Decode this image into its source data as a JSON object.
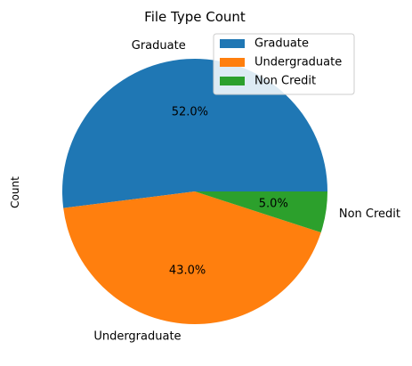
{
  "chart_data": {
    "type": "pie",
    "title": "File Type Count",
    "ylabel": "Count",
    "categories": [
      "Graduate",
      "Undergraduate",
      "Non Credit"
    ],
    "values": [
      52.0,
      43.0,
      5.0
    ],
    "percent_labels": [
      "52.0%",
      "43.0%",
      "5.0%"
    ],
    "colors": [
      "#1f77b4",
      "#ff7f0e",
      "#2ca02c"
    ],
    "legend": {
      "placement": "upper-right",
      "entries": [
        "Graduate",
        "Undergraduate",
        "Non Credit"
      ]
    }
  }
}
